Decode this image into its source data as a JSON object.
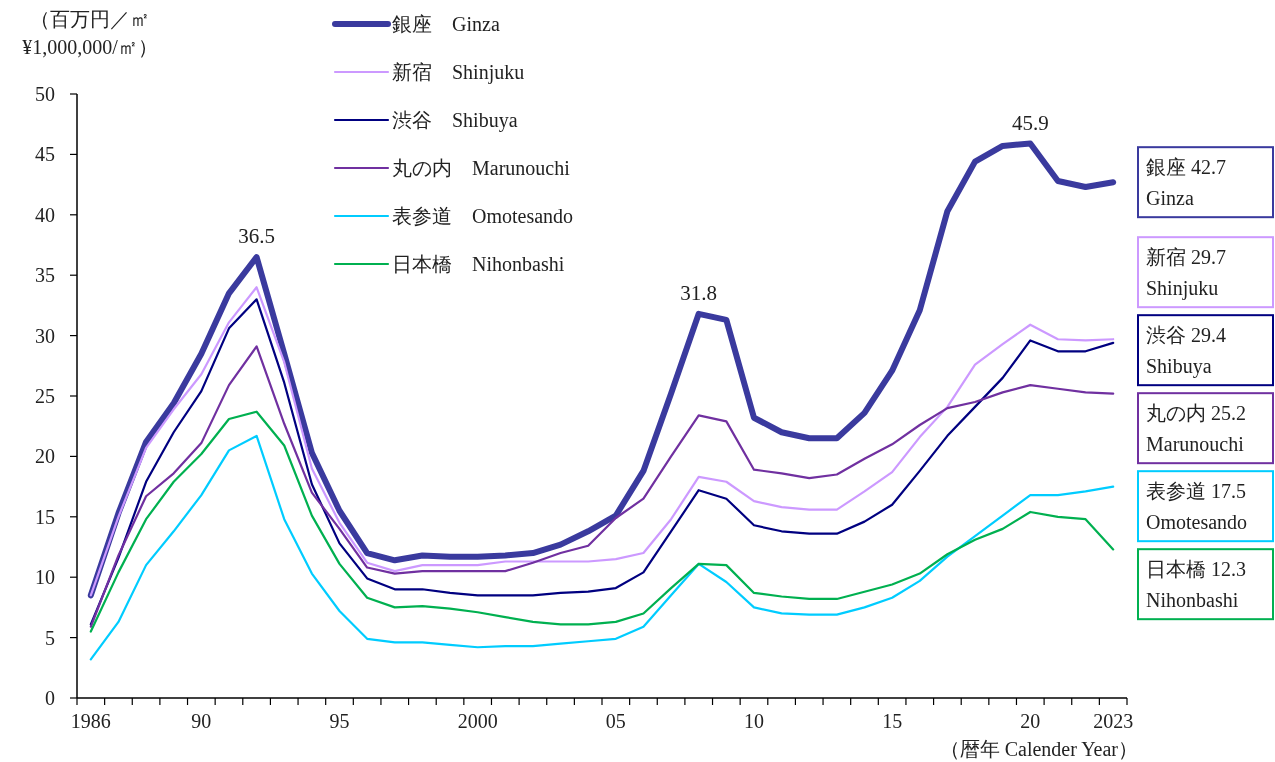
{
  "chart_data": {
    "type": "line",
    "ylabel": "（百万円／㎡\n¥1,000,000/㎡）",
    "xlabel": "（暦年 Calender Year）",
    "categories": [
      "1986",
      null,
      null,
      null,
      "90",
      null,
      null,
      null,
      null,
      "95",
      null,
      null,
      null,
      null,
      "2000",
      null,
      null,
      null,
      null,
      "05",
      null,
      null,
      null,
      null,
      "10",
      null,
      null,
      null,
      null,
      "15",
      null,
      null,
      null,
      null,
      "20",
      null,
      null,
      "2023"
    ],
    "ylim": [
      0,
      50
    ],
    "yticks": [
      0,
      5,
      10,
      15,
      20,
      25,
      30,
      35,
      40,
      45,
      50
    ],
    "grid": false,
    "legend": "top",
    "marker": "none",
    "line_style": "solid",
    "series": [
      {
        "name": "銀座　Ginza",
        "color": "#3a3a9e",
        "values": [
          8.5,
          15.3,
          21.2,
          24.4,
          28.5,
          33.5,
          36.5,
          28.5,
          20.3,
          15.5,
          12.0,
          11.4,
          11.8,
          11.7,
          11.7,
          11.8,
          12.0,
          12.7,
          13.8,
          15.1,
          18.8,
          25.2,
          31.8,
          31.3,
          23.2,
          22.0,
          21.5,
          21.5,
          23.6,
          27.1,
          32.1,
          40.3,
          44.4,
          45.7,
          45.9,
          42.8,
          42.3,
          42.7
        ],
        "value_labels": [
          null,
          null,
          null,
          null,
          null,
          null,
          "36.5",
          null,
          null,
          null,
          null,
          null,
          null,
          null,
          null,
          null,
          null,
          null,
          null,
          null,
          null,
          null,
          "31.8",
          null,
          null,
          null,
          null,
          null,
          null,
          null,
          null,
          null,
          null,
          null,
          "45.9",
          null,
          null,
          null
        ]
      },
      {
        "name": "新宿　Shinjuku",
        "color": "#cc99ff",
        "values": [
          8.5,
          15.0,
          20.7,
          23.9,
          26.8,
          31.1,
          34.0,
          27.8,
          19.0,
          14.5,
          11.2,
          10.5,
          11.0,
          11.0,
          11.0,
          11.3,
          11.3,
          11.3,
          11.3,
          11.5,
          12.0,
          14.8,
          18.3,
          17.9,
          16.3,
          15.8,
          15.6,
          15.6,
          17.1,
          18.7,
          21.6,
          24.1,
          27.6,
          29.3,
          30.9,
          29.7,
          29.6,
          29.7
        ]
      },
      {
        "name": "渋谷　Shibuya",
        "color": "#000080",
        "values": [
          6.1,
          11.6,
          17.9,
          22.0,
          25.4,
          30.6,
          33.0,
          26.1,
          17.7,
          12.8,
          9.9,
          9.0,
          9.0,
          8.7,
          8.5,
          8.5,
          8.5,
          8.7,
          8.8,
          9.1,
          10.4,
          13.8,
          17.2,
          16.5,
          14.3,
          13.8,
          13.6,
          13.6,
          14.6,
          16.0,
          18.8,
          21.7,
          24.1,
          26.5,
          29.6,
          28.7,
          28.7,
          29.4
        ]
      },
      {
        "name": "丸の内　Marunouchi",
        "color": "#7030a0",
        "values": [
          5.9,
          11.8,
          16.7,
          18.6,
          21.1,
          25.9,
          29.1,
          22.7,
          17.0,
          14.0,
          10.8,
          10.3,
          10.5,
          10.5,
          10.5,
          10.5,
          11.2,
          12.0,
          12.6,
          14.9,
          16.5,
          20.0,
          23.4,
          22.9,
          18.9,
          18.6,
          18.2,
          18.5,
          19.8,
          21.0,
          22.6,
          24.0,
          24.5,
          25.3,
          25.9,
          25.6,
          25.3,
          25.2
        ]
      },
      {
        "name": "表参道　Omotesando",
        "color": "#00ccff",
        "values": [
          3.2,
          6.3,
          11.0,
          13.8,
          16.8,
          20.5,
          21.7,
          14.8,
          10.3,
          7.2,
          4.9,
          4.6,
          4.6,
          4.4,
          4.2,
          4.3,
          4.3,
          4.5,
          4.7,
          4.9,
          5.9,
          8.5,
          11.1,
          9.6,
          7.5,
          7.0,
          6.9,
          6.9,
          7.5,
          8.3,
          9.7,
          11.7,
          13.4,
          15.1,
          16.8,
          16.8,
          17.1,
          17.5
        ]
      },
      {
        "name": "日本橋　Nihonbashi",
        "color": "#00b050",
        "values": [
          5.5,
          10.4,
          14.8,
          17.9,
          20.2,
          23.1,
          23.7,
          20.9,
          15.1,
          11.1,
          8.3,
          7.5,
          7.6,
          7.4,
          7.1,
          6.7,
          6.3,
          6.1,
          6.1,
          6.3,
          7.0,
          9.1,
          11.1,
          11.0,
          8.7,
          8.4,
          8.2,
          8.2,
          8.8,
          9.4,
          10.3,
          11.9,
          13.1,
          14.0,
          15.4,
          15.0,
          14.8,
          12.3
        ]
      }
    ],
    "annotations": [
      "銀座 42.7\nGinza",
      "新宿 29.7\nShinjuku",
      "渋谷 29.4\nShibuya",
      "丸の内 25.2\nMarunouchi",
      "表参道 17.5\nOmotesando",
      "日本橋 12.3\nNihonbashi"
    ]
  }
}
